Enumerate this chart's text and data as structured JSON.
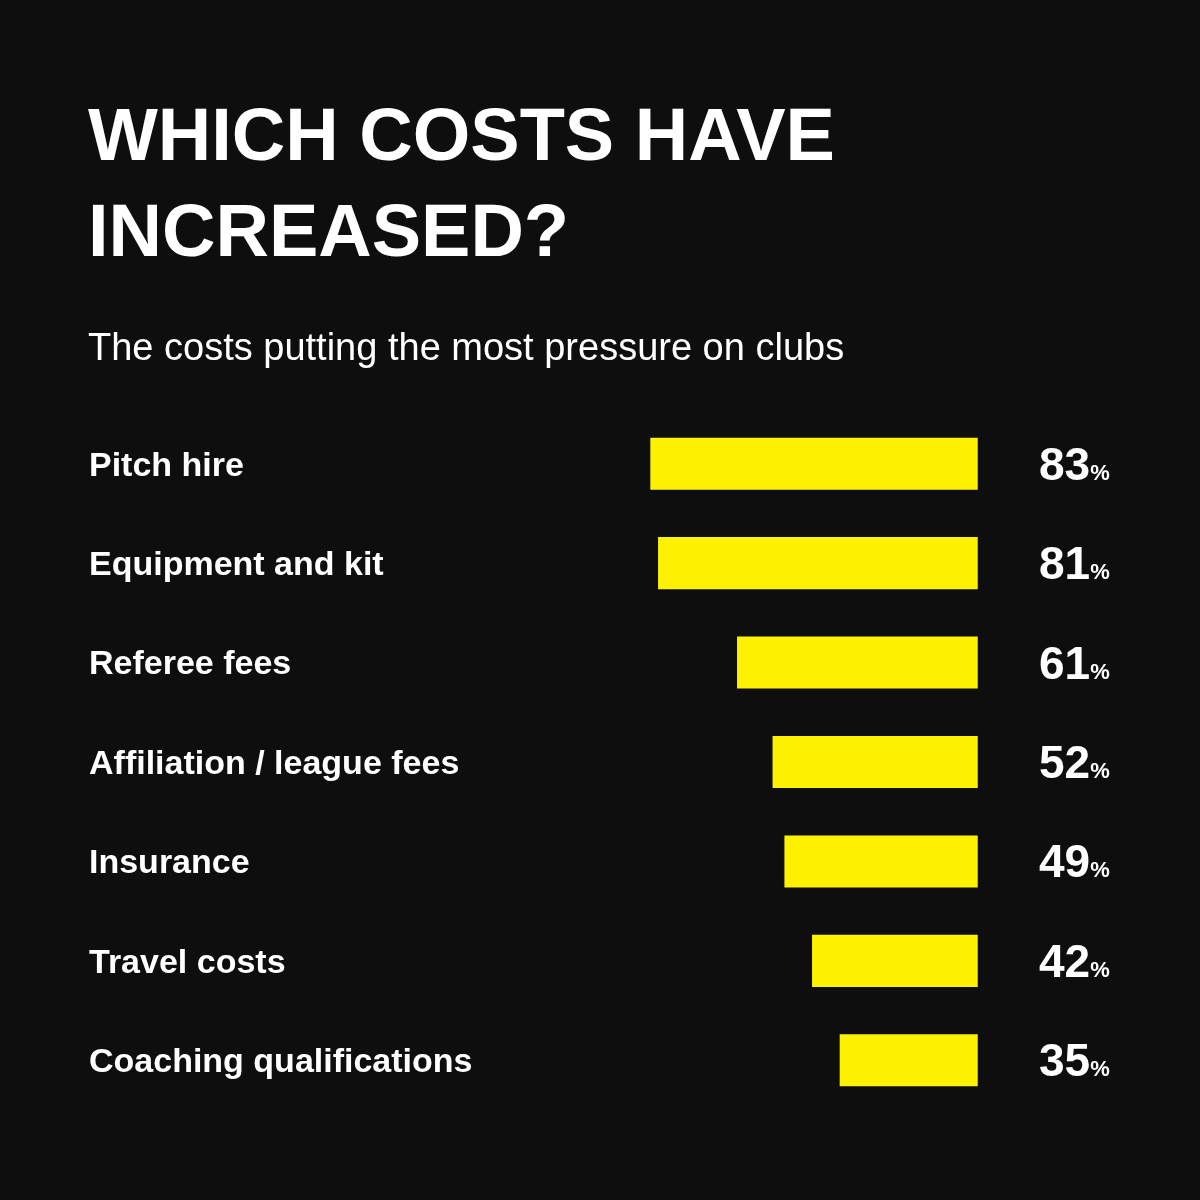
{
  "chart_data": {
    "type": "bar",
    "orientation": "horizontal",
    "title": "WHICH COSTS HAVE INCREASED?",
    "subtitle": "The costs putting the most pressure on clubs",
    "categories": [
      "Pitch hire",
      "Equipment and kit",
      "Referee fees",
      "Affiliation / league fees",
      "Insurance",
      "Travel costs",
      "Coaching qualifications"
    ],
    "values": [
      83,
      81,
      61,
      52,
      49,
      42,
      35
    ],
    "value_labels": [
      "83%",
      "81%",
      "61%",
      "52%",
      "49%",
      "42%",
      "35%"
    ],
    "color": "#fff200",
    "tick_labels": "y",
    "grid": false,
    "legend": false
  }
}
